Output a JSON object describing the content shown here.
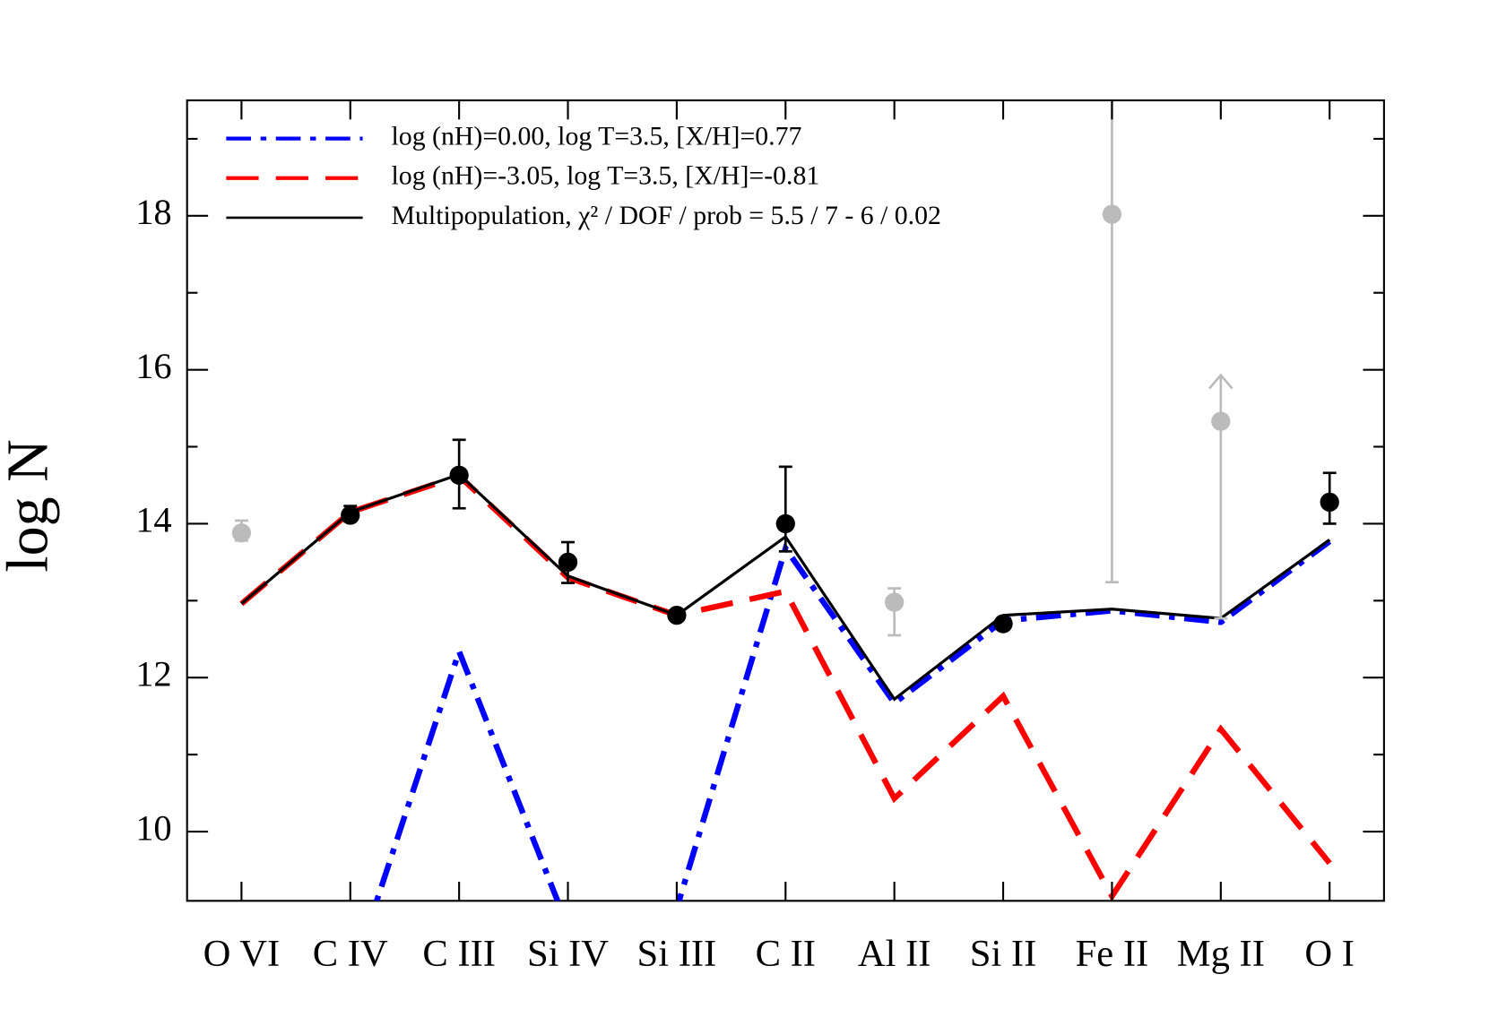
{
  "chart_data": {
    "type": "line",
    "ylabel": "log N",
    "categories": [
      "O VI",
      "C IV",
      "C III",
      "Si IV",
      "Si III",
      "C II",
      "Al II",
      "Si II",
      "Fe II",
      "Mg II",
      "O I"
    ],
    "ylim": [
      9.1,
      19.5
    ],
    "yticks": [
      10,
      12,
      14,
      16,
      18
    ],
    "yminor": [
      11,
      13,
      15,
      17,
      19
    ],
    "series": [
      {
        "name": "log (nH)=0.00, log T=3.5, [X/H]=0.77",
        "color": "#0000ff",
        "dash": "dashdot",
        "values": [
          null,
          8.06,
          12.34,
          8.76,
          9.0,
          13.68,
          11.67,
          12.74,
          12.87,
          12.72,
          13.77
        ]
      },
      {
        "name": "log (nH)=-3.05, log T=3.5, [X/H]=-0.81",
        "color": "#ff0000",
        "dash": "dash",
        "values": [
          12.96,
          14.15,
          14.62,
          13.3,
          12.81,
          13.12,
          10.43,
          11.76,
          9.16,
          11.33,
          9.59
        ]
      },
      {
        "name": "Multipopulation, χ² / DOF / prob =  5.5 /  7 - 6 /   0.02",
        "color": "#000000",
        "dash": "solid",
        "values": [
          12.96,
          14.15,
          14.64,
          13.32,
          12.81,
          13.83,
          11.72,
          12.81,
          12.89,
          12.77,
          13.79
        ]
      }
    ],
    "observations": [
      {
        "color": "#000000",
        "values": [
          null,
          14.11,
          14.63,
          13.5,
          12.81,
          14.0,
          null,
          12.7,
          null,
          null,
          14.28
        ],
        "err_high": [
          null,
          0.12,
          0.46,
          0.26,
          0.05,
          0.74,
          null,
          0.05,
          null,
          null,
          0.38
        ],
        "err_low": [
          null,
          0.08,
          0.43,
          0.27,
          0.05,
          0.36,
          null,
          0.05,
          null,
          null,
          0.28
        ],
        "lower_limit": [
          false,
          false,
          false,
          false,
          false,
          false,
          false,
          false,
          false,
          false,
          false
        ]
      },
      {
        "color": "#bbbbbb",
        "values": [
          13.88,
          null,
          null,
          null,
          null,
          null,
          12.98,
          null,
          18.02,
          15.33,
          null
        ],
        "err_high": [
          0.16,
          null,
          null,
          null,
          null,
          null,
          0.18,
          null,
          1.6,
          0.6,
          null
        ],
        "err_low": [
          0.1,
          null,
          null,
          null,
          null,
          null,
          0.43,
          null,
          4.78,
          2.56,
          null
        ],
        "lower_limit": [
          false,
          false,
          false,
          false,
          false,
          false,
          false,
          false,
          false,
          true,
          false
        ]
      }
    ]
  }
}
